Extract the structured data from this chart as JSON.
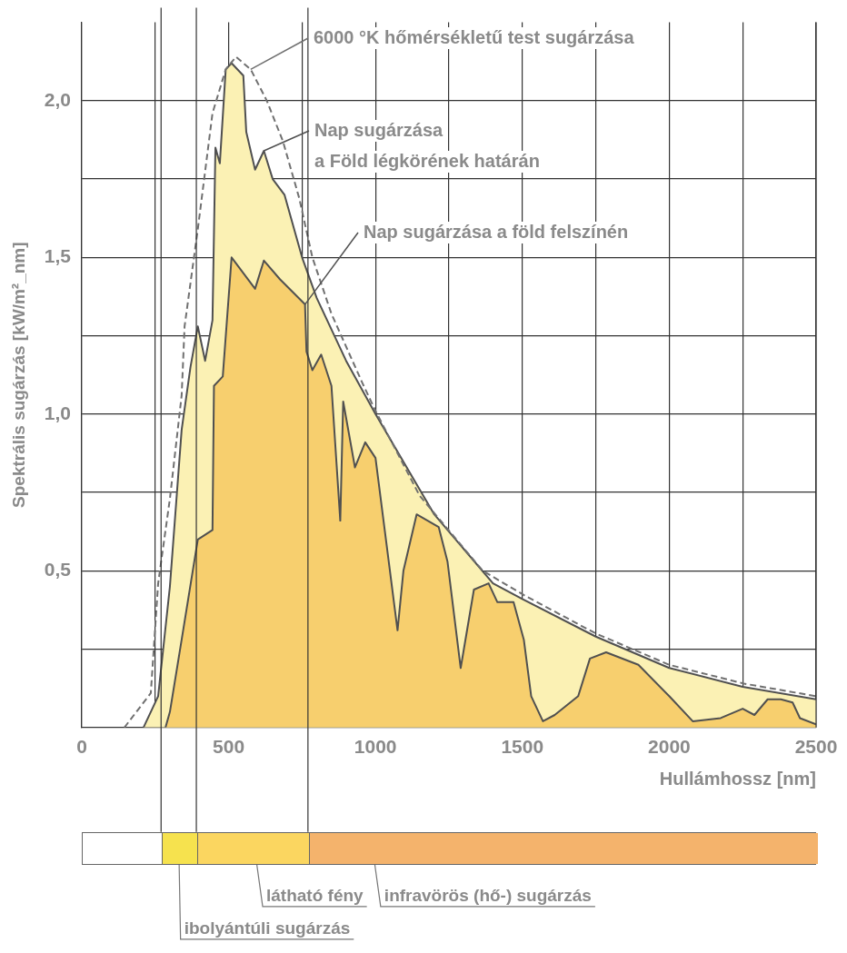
{
  "chart_data": {
    "type": "area",
    "xlabel": "Hullámhossz [nm]",
    "ylabel": "Spektrális sugárzás [kW/m²_nm]",
    "xlim": [
      0,
      2500
    ],
    "xticks": [
      0,
      {
        "value": 250,
        "label": null
      },
      500,
      {
        "value": 750,
        "label": null
      },
      1000,
      {
        "value": 1250,
        "label": null
      },
      1500,
      {
        "value": 1750,
        "label": null
      },
      2000,
      {
        "value": 2250,
        "label": null
      },
      2500
    ],
    "ylim": [
      0,
      2.25
    ],
    "yticks": [
      {
        "value": 0.25,
        "label": null
      },
      {
        "value": 0.5,
        "label": "0,5"
      },
      {
        "value": 0.75,
        "label": null
      },
      {
        "value": 1.0,
        "label": "1,0"
      },
      {
        "value": 1.25,
        "label": null
      },
      {
        "value": 1.5,
        "label": "1,5"
      },
      {
        "value": 1.75,
        "label": null
      },
      {
        "value": 2.0,
        "label": "2,0"
      }
    ],
    "grid": true,
    "annotations": [
      "ibolyántúli sugárzás",
      "látható fény",
      "infravörös (hő-) sugárzás"
    ],
    "marker": "none",
    "series": [
      {
        "name": "Nap sugárzása\na Föld légkörének határán",
        "color": "#fbf1b4",
        "x": [
          210,
          260,
          300,
          340,
          370,
          395,
          420,
          445,
          455,
          470,
          490,
          510,
          550,
          560,
          590,
          620,
          650,
          690,
          750,
          800,
          900,
          1000,
          1200,
          1400,
          1500,
          1750,
          2000,
          2250,
          2500
        ],
        "values": [
          0,
          0.1,
          0.45,
          0.95,
          1.15,
          1.28,
          1.17,
          1.3,
          1.85,
          1.8,
          2.1,
          2.12,
          2.08,
          1.9,
          1.78,
          1.84,
          1.75,
          1.7,
          1.5,
          1.37,
          1.17,
          1.0,
          0.68,
          0.46,
          0.41,
          0.29,
          0.19,
          0.13,
          0.09
        ]
      },
      {
        "name": "Nap sugárzása a föld felszínén",
        "color": "#f7cf6e",
        "x": [
          285,
          300,
          340,
          395,
          445,
          450,
          480,
          510,
          590,
          620,
          675,
          760,
          765,
          785,
          815,
          850,
          880,
          890,
          930,
          965,
          1000,
          1075,
          1095,
          1140,
          1215,
          1245,
          1290,
          1335,
          1385,
          1415,
          1470,
          1505,
          1530,
          1570,
          1610,
          1690,
          1730,
          1785,
          1895,
          2000,
          2080,
          2175,
          2250,
          2290,
          2335,
          2380,
          2420,
          2445,
          2500
        ],
        "values": [
          0,
          0.05,
          0.28,
          0.6,
          0.63,
          1.09,
          1.12,
          1.5,
          1.4,
          1.49,
          1.43,
          1.35,
          1.2,
          1.14,
          1.19,
          1.09,
          0.66,
          1.04,
          0.83,
          0.91,
          0.86,
          0.31,
          0.5,
          0.68,
          0.64,
          0.53,
          0.19,
          0.44,
          0.46,
          0.4,
          0.4,
          0.28,
          0.1,
          0.02,
          0.04,
          0.1,
          0.22,
          0.24,
          0.2,
          0.1,
          0.02,
          0.03,
          0.06,
          0.04,
          0.09,
          0.09,
          0.08,
          0.03,
          0.01
        ]
      },
      {
        "name": "6000 °K hőmérsékletű test sugárzása",
        "type": "line",
        "line_style": "dashed",
        "color": "#707070",
        "x": [
          145,
          235,
          260,
          300,
          340,
          350,
          395,
          445,
          490,
          525,
          575,
          630,
          685,
          740,
          785,
          850,
          955,
          1000,
          1150,
          1365,
          1510,
          1750,
          2000,
          2255,
          2500
        ],
        "values": [
          0,
          0.11,
          0.46,
          0.73,
          1.06,
          1.28,
          1.59,
          1.96,
          2.1,
          2.14,
          2.1,
          2.0,
          1.87,
          1.69,
          1.5,
          1.32,
          1.1,
          1.01,
          0.74,
          0.5,
          0.42,
          0.3,
          0.2,
          0.14,
          0.1
        ]
      }
    ],
    "ref_lines": [
      {
        "axis": "x",
        "value": 270,
        "color": "#333333"
      },
      {
        "axis": "x",
        "value": 390,
        "color": "#333333"
      },
      {
        "axis": "x",
        "value": 770,
        "color": "#333333"
      }
    ]
  }
}
